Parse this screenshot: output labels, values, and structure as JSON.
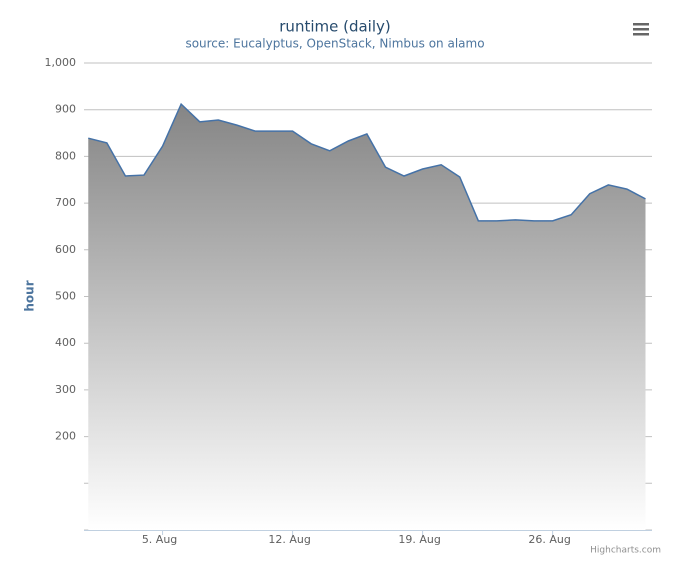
{
  "chart_data": {
    "type": "area",
    "title": "runtime (daily)",
    "subtitle": "source: Eucalyptus, OpenStack, Nimbus on alamo",
    "y_axis_label": "hour",
    "credits": "Highcharts.com",
    "x": [
      1,
      2,
      3,
      4,
      5,
      6,
      7,
      8,
      9,
      10,
      11,
      12,
      13,
      14,
      15,
      16,
      17,
      18,
      19,
      20,
      21,
      22,
      23,
      24,
      25,
      26,
      27,
      28,
      29,
      30,
      31
    ],
    "series": [
      {
        "name": "runtime",
        "color": "#4572a7",
        "values": [
          839,
          829,
          758,
          760,
          822,
          912,
          874,
          878,
          867,
          854,
          854,
          854,
          827,
          812,
          833,
          848,
          777,
          758,
          773,
          782,
          756,
          662,
          662,
          664,
          662,
          662,
          675,
          720,
          739,
          730,
          709
        ]
      }
    ],
    "xlim": [
      0.77,
      31.35
    ],
    "xticks": [
      {
        "value": 5,
        "label": "5. Aug"
      },
      {
        "value": 12,
        "label": "12. Aug"
      },
      {
        "value": 19,
        "label": "19. Aug"
      },
      {
        "value": 26,
        "label": "26. Aug"
      }
    ],
    "ylim": [
      0,
      1000
    ],
    "yticks": [
      {
        "value": 0,
        "label": null
      },
      {
        "value": 100,
        "label": null
      },
      200,
      300,
      400,
      500,
      600,
      700,
      800,
      900,
      {
        "value": 1000,
        "label": "1,000"
      }
    ],
    "grid": true
  }
}
